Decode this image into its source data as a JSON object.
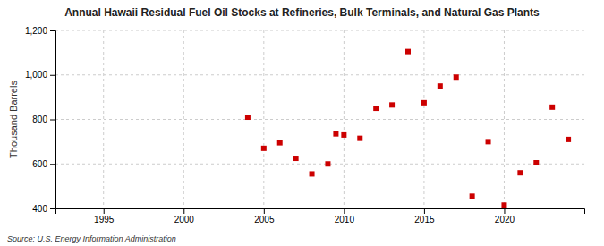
{
  "chart_data": {
    "type": "scatter",
    "title": "Annual Hawaii Residual Fuel Oil Stocks at Refineries, Bulk Terminals, and Natural Gas Plants",
    "ylabel": "Thousand Barrels",
    "annotations": [
      "Source: U.S. Energy Information Administration"
    ],
    "x": [
      2004,
      2005,
      2006,
      2007,
      2008,
      2009,
      2009.5,
      2010,
      2011,
      2012,
      2013,
      2014,
      2015,
      2016,
      2017,
      2018,
      2019,
      2020,
      2021,
      2022,
      2023,
      2024
    ],
    "values": [
      810,
      670,
      695,
      625,
      555,
      600,
      735,
      730,
      715,
      850,
      865,
      1105,
      875,
      950,
      990,
      455,
      700,
      415,
      560,
      605,
      855,
      710
    ],
    "color": "#cc0000",
    "marker": "square",
    "xlim": [
      1992,
      2025
    ],
    "ylim": [
      400,
      1200
    ],
    "xticks": [
      1995,
      2000,
      2005,
      2010,
      2015,
      2020
    ],
    "yticks": [
      400,
      600,
      800,
      {
        "value": 1000,
        "label": "1,000"
      },
      {
        "value": 1200,
        "label": "1,200"
      }
    ],
    "grid": true
  }
}
